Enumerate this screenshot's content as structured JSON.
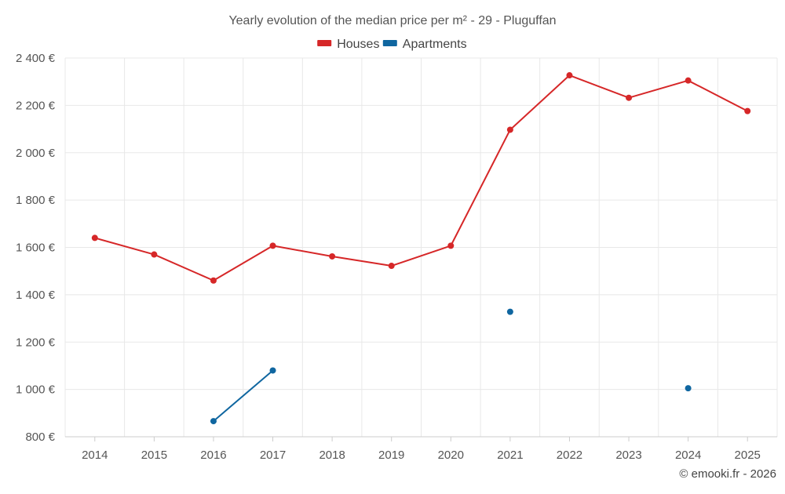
{
  "chart_data": {
    "type": "line",
    "title": "Yearly evolution of the median price per m² - 29 - Pluguffan",
    "x": [
      "2014",
      "2015",
      "2016",
      "2017",
      "2018",
      "2019",
      "2020",
      "2021",
      "2022",
      "2023",
      "2024",
      "2025"
    ],
    "ylim": [
      800,
      2400
    ],
    "yticks": [
      800,
      1000,
      1200,
      1400,
      1600,
      1800,
      2000,
      2200,
      2400
    ],
    "ytick_labels": [
      "800 €",
      "1 000 €",
      "1 200 €",
      "1 400 €",
      "1 600 €",
      "1 800 €",
      "2 000 €",
      "2 200 €",
      "2 400 €"
    ],
    "grid": true,
    "legend_position": "top-center",
    "series": [
      {
        "name": "Houses",
        "color": "#d62728",
        "values": [
          1640,
          1570,
          1460,
          1607,
          1562,
          1522,
          1607,
          2097,
          2327,
          2232,
          2305,
          2176
        ]
      },
      {
        "name": "Apartments",
        "color": "#0f66a0",
        "values": [
          null,
          null,
          866,
          1080,
          null,
          null,
          null,
          1328,
          null,
          null,
          1005,
          null
        ]
      }
    ]
  },
  "footer": {
    "credit": "© emooki.fr - 2026"
  }
}
